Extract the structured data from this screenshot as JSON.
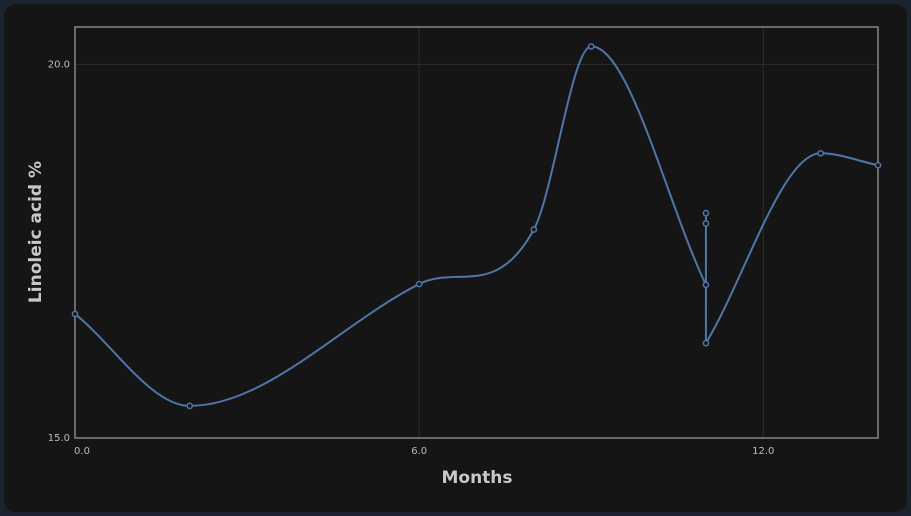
{
  "chart_data": {
    "type": "line",
    "x_label": "Months",
    "y_label": "Linoleic acid %",
    "x": [
      0,
      2,
      6,
      8,
      9,
      11,
      11,
      11,
      11,
      13,
      14
    ],
    "series": [
      {
        "color": "#4f76ab",
        "values": [
          16.66,
          15.43,
          17.06,
          17.79,
          20.24,
          17.05,
          18.01,
          17.87,
          16.27,
          18.81,
          18.65
        ]
      }
    ],
    "xlim": [
      0,
      14
    ],
    "ylim": [
      15,
      20.5
    ],
    "xticks": [
      {
        "value": 0,
        "label": "0.0"
      },
      {
        "value": 6,
        "label": "6.0"
      },
      {
        "value": 12,
        "label": "12.0"
      }
    ],
    "yticks": [
      {
        "value": 15,
        "label": "15.0"
      },
      {
        "value": 20,
        "label": "20.0"
      }
    ],
    "grid": true
  }
}
